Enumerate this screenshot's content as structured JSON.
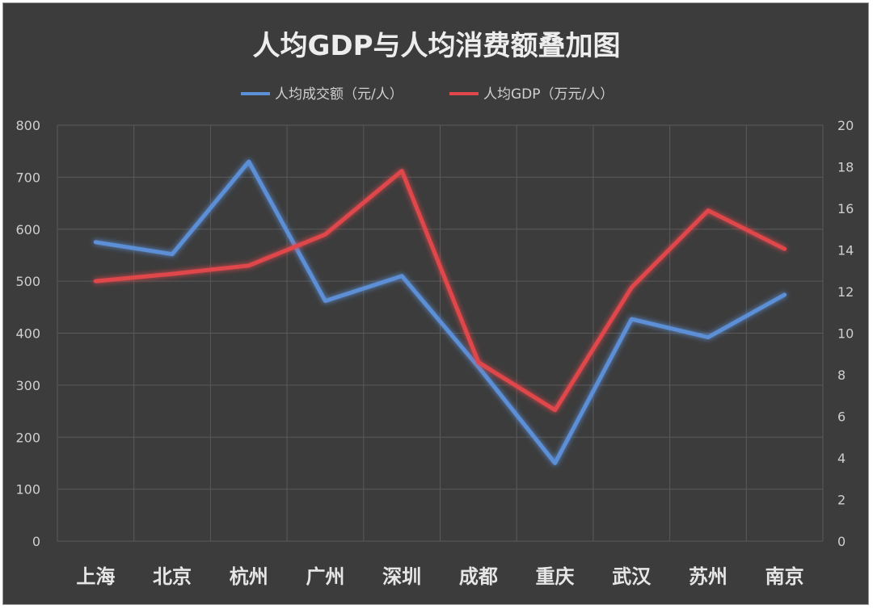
{
  "chart_data": {
    "type": "line",
    "title": "人均GDP与人均消费额叠加图",
    "categories": [
      "上海",
      "北京",
      "杭州",
      "广州",
      "深圳",
      "成都",
      "重庆",
      "武汉",
      "苏州",
      "南京"
    ],
    "series": [
      {
        "name": "人均成交额（元/人）",
        "axis": "left",
        "color": "#5b8fd6",
        "values": [
          575,
          552,
          730,
          462,
          510,
          335,
          150,
          427,
          392,
          474
        ]
      },
      {
        "name": "人均GDP（万元/人）",
        "axis": "right",
        "color": "#e0474c",
        "values": [
          12.5,
          12.85,
          13.25,
          14.75,
          17.8,
          8.6,
          6.3,
          12.2,
          15.9,
          14.05
        ]
      }
    ],
    "y_left": {
      "min": 0,
      "max": 800,
      "ticks": [
        "0",
        "100",
        "200",
        "300",
        "400",
        "500",
        "600",
        "700",
        "800"
      ]
    },
    "y_right": {
      "min": 0,
      "max": 20,
      "ticks": [
        "0",
        "2",
        "4",
        "6",
        "8",
        "10",
        "12",
        "14",
        "16",
        "18",
        "20"
      ]
    },
    "grid": true,
    "legend_position": "top"
  }
}
